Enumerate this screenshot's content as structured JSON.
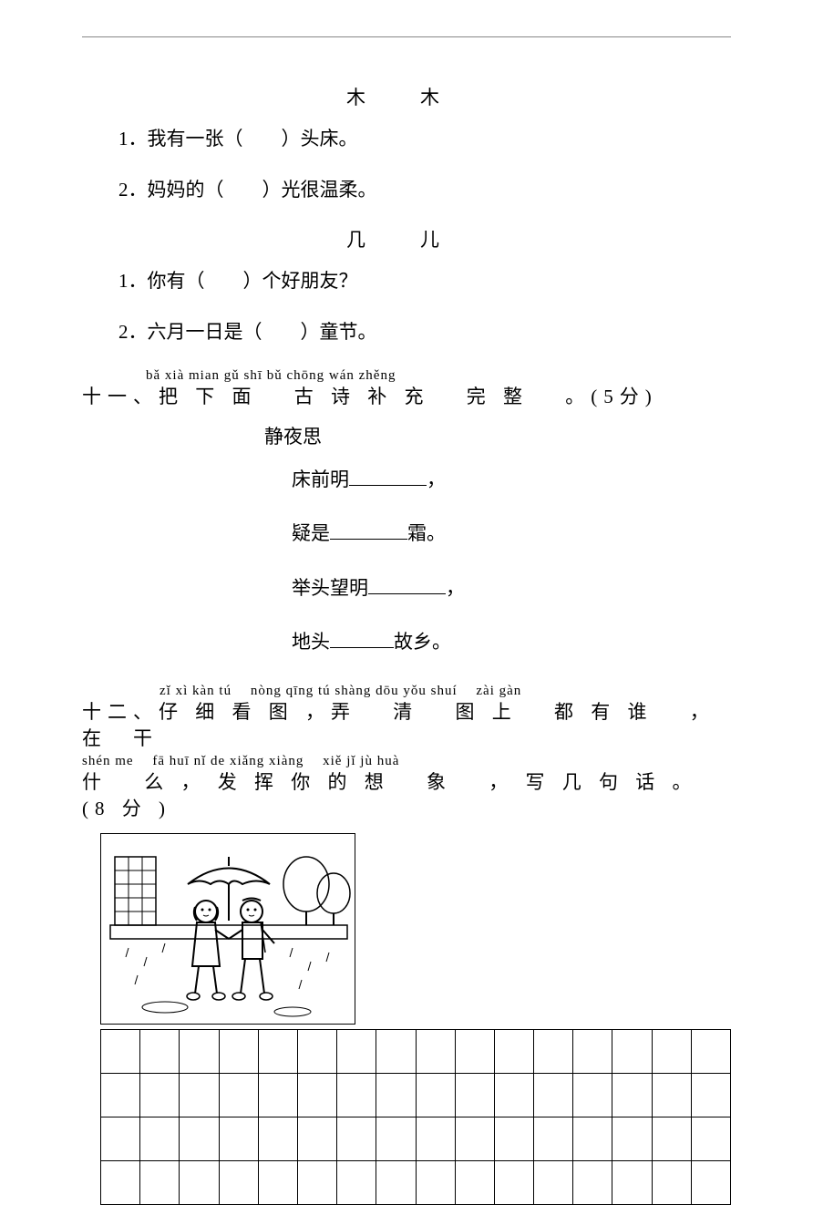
{
  "exercise_a": {
    "char1": "木",
    "char2": "木",
    "q1": "1．我有一张（　　）头床。",
    "q2": "2．妈妈的（　　）光很温柔。"
  },
  "exercise_b": {
    "char1": "几",
    "char2": "儿",
    "q1": "1．你有（　　）个好朋友？",
    "q2": "2．六月一日是（　　）童节。"
  },
  "section_11": {
    "pinyin": "bǎ xià mian gǔ shī bǔ chōng wán zhěng",
    "hanzi": "十一、把 下 面　 古 诗 补 充　 完 整　 。(5分)",
    "poem_title": "静夜思",
    "line1_pre": "床前明",
    "line1_post": "，",
    "line2_pre": "疑是",
    "line2_post": "霜。",
    "line3_pre": "举头望明",
    "line3_post": "，",
    "line4_pre": "地头",
    "line4_post": "故乡。"
  },
  "section_12": {
    "pinyin_a": "zǐ xì kàn tú　 nòng qīng tú shàng dōu yǒu shuí　 zài gàn",
    "hanzi_a": "十二、仔 细 看 图 ，弄　 清　 图 上　 都 有 谁　 ，在　干",
    "pinyin_b": "shén me　 fā huī nǐ de xiǎng xiàng　 xiě jǐ jù huà",
    "hanzi_b": "什　 么 ， 发 挥 你 的 想　 象　 ， 写 几 句 话 。 (8 分 )",
    "grid_rows": 4,
    "grid_cols": 16
  },
  "colors": {
    "background": "#ffffff",
    "text": "#000000",
    "rule": "#888888"
  }
}
